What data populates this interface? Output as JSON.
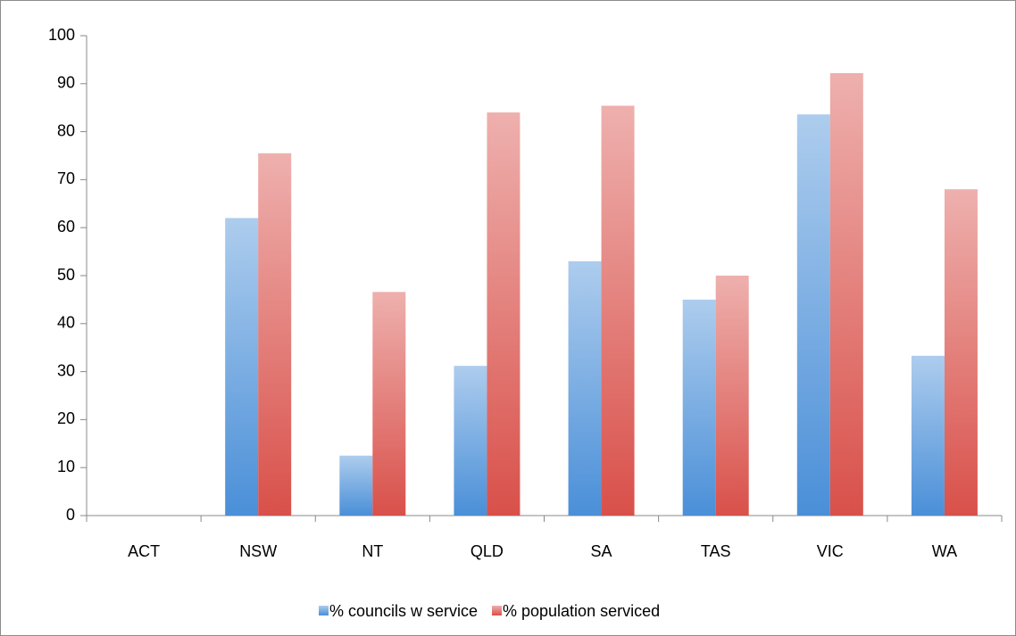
{
  "chart_data": {
    "type": "bar",
    "categories": [
      "ACT",
      "NSW",
      "NT",
      "QLD",
      "SA",
      "TAS",
      "VIC",
      "WA"
    ],
    "series": [
      {
        "name": "% councils w service",
        "color": "#4a8fd8",
        "values": [
          0,
          62,
          12.5,
          31.2,
          53,
          45,
          83.6,
          33.3
        ]
      },
      {
        "name": "% population serviced",
        "color": "#d9504a",
        "values": [
          0,
          75.5,
          46.6,
          84,
          85.4,
          50,
          92.2,
          68
        ]
      }
    ],
    "ylim": [
      0,
      100
    ],
    "yticks": [
      0,
      10,
      20,
      30,
      40,
      50,
      60,
      70,
      80,
      90,
      100
    ],
    "legend": "bottom"
  }
}
